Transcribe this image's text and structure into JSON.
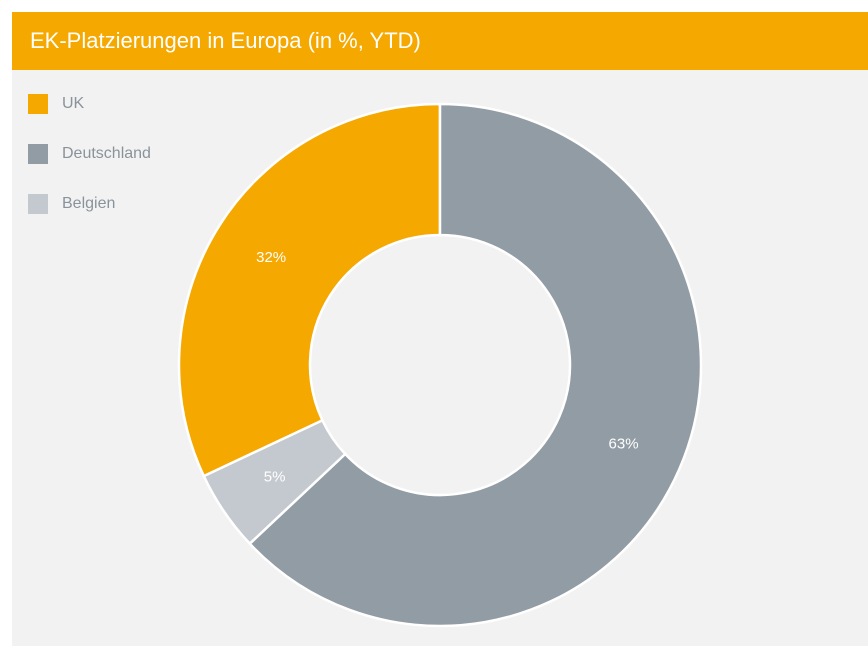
{
  "chart_data": {
    "type": "donut",
    "title": "EK-Platzierungen in Europa (in %, YTD)",
    "categories": [
      "UK",
      "Deutschland",
      "Belgien"
    ],
    "values": [
      32,
      63,
      5
    ],
    "value_labels": [
      "32%",
      "63%",
      "5%"
    ],
    "colors": [
      "#f5a800",
      "#929ca4",
      "#c4c9cf"
    ],
    "legend": "top-left"
  }
}
